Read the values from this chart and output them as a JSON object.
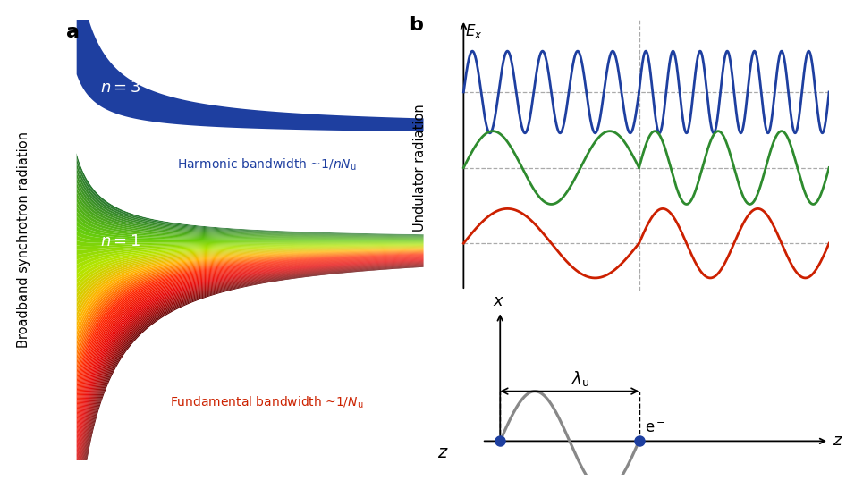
{
  "fig_width": 9.46,
  "fig_height": 5.47,
  "bg_color": "#ffffff",
  "panel_a": {
    "label": "a",
    "blue_color": "#1e3fa0",
    "text_n3": "n = 3",
    "text_n1": "n = 1",
    "text_harmonic": "Harmonic bandwidth ~$1/nN_\\mathrm{u}$",
    "text_fundamental": "Fundamental bandwidth ~$1/N_\\mathrm{u}$",
    "text_ylabel": "Broadband synchrotron radiation",
    "text_xlabel": "z",
    "harmonic_text_color": "#1e3fa0",
    "fundamental_text_color": "#cc2200"
  },
  "panel_b": {
    "label": "b",
    "blue_color": "#1e3fa0",
    "green_color": "#2e8b2e",
    "red_color": "#cc2000",
    "gray_color": "#888888",
    "dashed_color": "#999999"
  }
}
